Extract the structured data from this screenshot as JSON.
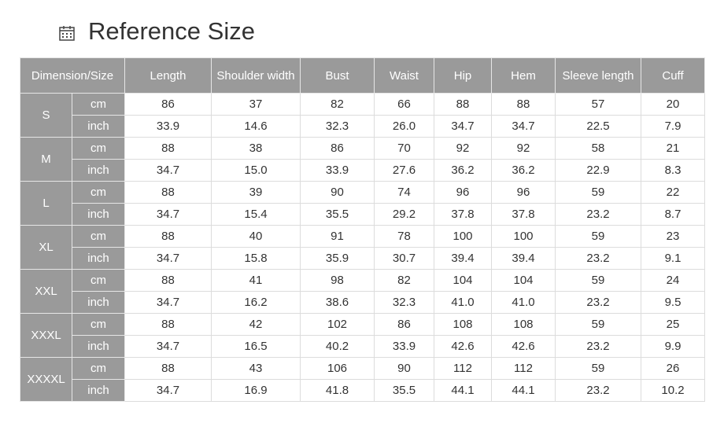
{
  "header": {
    "title": "Reference Size"
  },
  "table": {
    "headers": [
      "Dimension/Size",
      "Length",
      "Shoulder width",
      "Bust",
      "Waist",
      "Hip",
      "Hem",
      "Sleeve length",
      "Cuff"
    ],
    "rows": [
      {
        "size": "S",
        "rows": [
          {
            "unit": "cm",
            "values": [
              "86",
              "37",
              "82",
              "66",
              "88",
              "88",
              "57",
              "20"
            ]
          },
          {
            "unit": "inch",
            "values": [
              "33.9",
              "14.6",
              "32.3",
              "26.0",
              "34.7",
              "34.7",
              "22.5",
              "7.9"
            ]
          }
        ]
      },
      {
        "size": "M",
        "rows": [
          {
            "unit": "cm",
            "values": [
              "88",
              "38",
              "86",
              "70",
              "92",
              "92",
              "58",
              "21"
            ]
          },
          {
            "unit": "inch",
            "values": [
              "34.7",
              "15.0",
              "33.9",
              "27.6",
              "36.2",
              "36.2",
              "22.9",
              "8.3"
            ]
          }
        ]
      },
      {
        "size": "L",
        "rows": [
          {
            "unit": "cm",
            "values": [
              "88",
              "39",
              "90",
              "74",
              "96",
              "96",
              "59",
              "22"
            ]
          },
          {
            "unit": "inch",
            "values": [
              "34.7",
              "15.4",
              "35.5",
              "29.2",
              "37.8",
              "37.8",
              "23.2",
              "8.7"
            ]
          }
        ]
      },
      {
        "size": "XL",
        "rows": [
          {
            "unit": "cm",
            "values": [
              "88",
              "40",
              "91",
              "78",
              "100",
              "100",
              "59",
              "23"
            ]
          },
          {
            "unit": "inch",
            "values": [
              "34.7",
              "15.8",
              "35.9",
              "30.7",
              "39.4",
              "39.4",
              "23.2",
              "9.1"
            ]
          }
        ]
      },
      {
        "size": "XXL",
        "rows": [
          {
            "unit": "cm",
            "values": [
              "88",
              "41",
              "98",
              "82",
              "104",
              "104",
              "59",
              "24"
            ]
          },
          {
            "unit": "inch",
            "values": [
              "34.7",
              "16.2",
              "38.6",
              "32.3",
              "41.0",
              "41.0",
              "23.2",
              "9.5"
            ]
          }
        ]
      },
      {
        "size": "XXXL",
        "rows": [
          {
            "unit": "cm",
            "values": [
              "88",
              "42",
              "102",
              "86",
              "108",
              "108",
              "59",
              "25"
            ]
          },
          {
            "unit": "inch",
            "values": [
              "34.7",
              "16.5",
              "40.2",
              "33.9",
              "42.6",
              "42.6",
              "23.2",
              "9.9"
            ]
          }
        ]
      },
      {
        "size": "XXXXL",
        "rows": [
          {
            "unit": "cm",
            "values": [
              "88",
              "43",
              "106",
              "90",
              "112",
              "112",
              "59",
              "26"
            ]
          },
          {
            "unit": "inch",
            "values": [
              "34.7",
              "16.9",
              "41.8",
              "35.5",
              "44.1",
              "44.1",
              "23.2",
              "10.2"
            ]
          }
        ]
      }
    ]
  }
}
